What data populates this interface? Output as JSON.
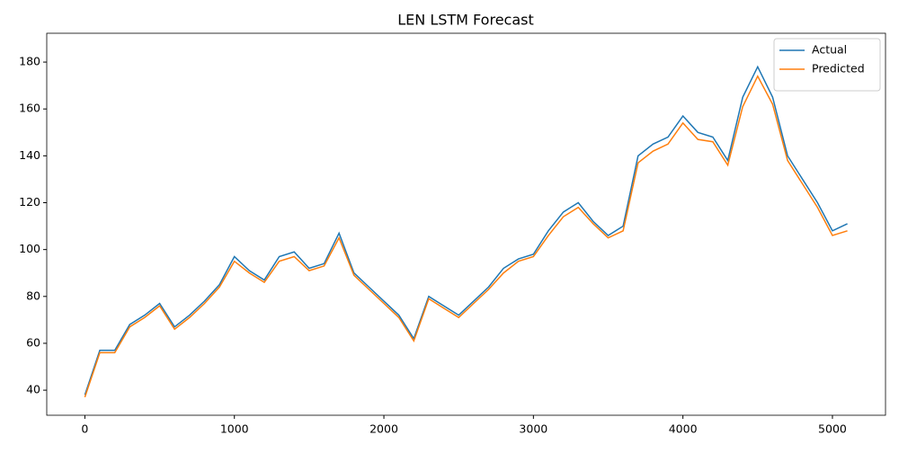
{
  "chart_data": {
    "type": "line",
    "title": "LEN LSTM Forecast",
    "x": [
      0,
      100,
      200,
      300,
      400,
      500,
      600,
      700,
      800,
      900,
      1000,
      1100,
      1200,
      1300,
      1400,
      1500,
      1600,
      1700,
      1800,
      1900,
      2000,
      2100,
      2200,
      2300,
      2400,
      2500,
      2600,
      2700,
      2800,
      2900,
      3000,
      3100,
      3200,
      3300,
      3400,
      3500,
      3600,
      3700,
      3800,
      3900,
      4000,
      4100,
      4200,
      4300,
      4400,
      4500,
      4600,
      4700,
      4800,
      4900,
      5000,
      5100
    ],
    "series": [
      {
        "name": "Actual",
        "color": "#1f77b4",
        "values": [
          38,
          57,
          57,
          68,
          72,
          77,
          67,
          72,
          78,
          85,
          97,
          91,
          87,
          97,
          99,
          92,
          94,
          107,
          90,
          84,
          78,
          72,
          62,
          80,
          76,
          72,
          78,
          84,
          92,
          96,
          98,
          108,
          116,
          120,
          112,
          106,
          110,
          140,
          145,
          148,
          157,
          150,
          148,
          138,
          165,
          178,
          165,
          140,
          130,
          120,
          108,
          111
        ]
      },
      {
        "name": "Predicted",
        "color": "#ff7f0e",
        "values": [
          37,
          56,
          56,
          67,
          71,
          76,
          66,
          71,
          77,
          84,
          95,
          90,
          86,
          95,
          97,
          91,
          93,
          105,
          89,
          83,
          77,
          71,
          61,
          79,
          75,
          71,
          77,
          83,
          90,
          95,
          97,
          106,
          114,
          118,
          111,
          105,
          108,
          137,
          142,
          145,
          154,
          147,
          146,
          136,
          161,
          174,
          162,
          138,
          128,
          118,
          106,
          108
        ]
      }
    ],
    "xlim": [
      -255,
      5355
    ],
    "xticks": [
      0,
      1000,
      2000,
      3000,
      4000,
      5000
    ],
    "ylim": [
      29.3,
      192.3
    ],
    "yticks": [
      40,
      60,
      80,
      100,
      120,
      140,
      160,
      180
    ],
    "legend": "upper right"
  }
}
